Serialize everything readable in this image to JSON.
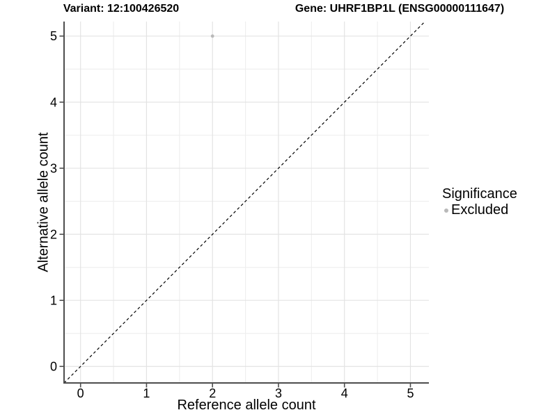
{
  "chart_data": {
    "type": "scatter",
    "titles": {
      "left": "Variant: 12:100426520",
      "right": "Gene: UHRF1BP1L (ENSG00000111647)"
    },
    "xlabel": "Reference allele count",
    "ylabel": "Alternative allele count",
    "xlim": [
      -0.25,
      5.28
    ],
    "ylim": [
      -0.25,
      5.22
    ],
    "xticks": [
      0,
      1,
      2,
      3,
      4,
      5
    ],
    "yticks": [
      0,
      1,
      2,
      3,
      4,
      5
    ],
    "x_minor": [
      0.5,
      1.5,
      2.5,
      3.5,
      4.5
    ],
    "y_minor": [
      0.5,
      1.5,
      2.5,
      3.5,
      4.5
    ],
    "grid": true,
    "legend_position": "right",
    "points": [
      {
        "x": 2,
        "y": 5,
        "significance": "Excluded"
      }
    ],
    "identity_line": {
      "style": "dashed",
      "slope": 1,
      "intercept": 0,
      "color": "#000000"
    },
    "colors": {
      "excluded_point": "#b9b9b9",
      "grid_major": "#e3e3e3",
      "grid_minor": "#eeeeee",
      "axis_line": "#4d4d4d",
      "text": "#000000"
    }
  },
  "legend": {
    "title": "Significance",
    "items": [
      {
        "label": "Excluded",
        "marker": "circle-icon",
        "color": "#b9b9b9"
      }
    ]
  }
}
